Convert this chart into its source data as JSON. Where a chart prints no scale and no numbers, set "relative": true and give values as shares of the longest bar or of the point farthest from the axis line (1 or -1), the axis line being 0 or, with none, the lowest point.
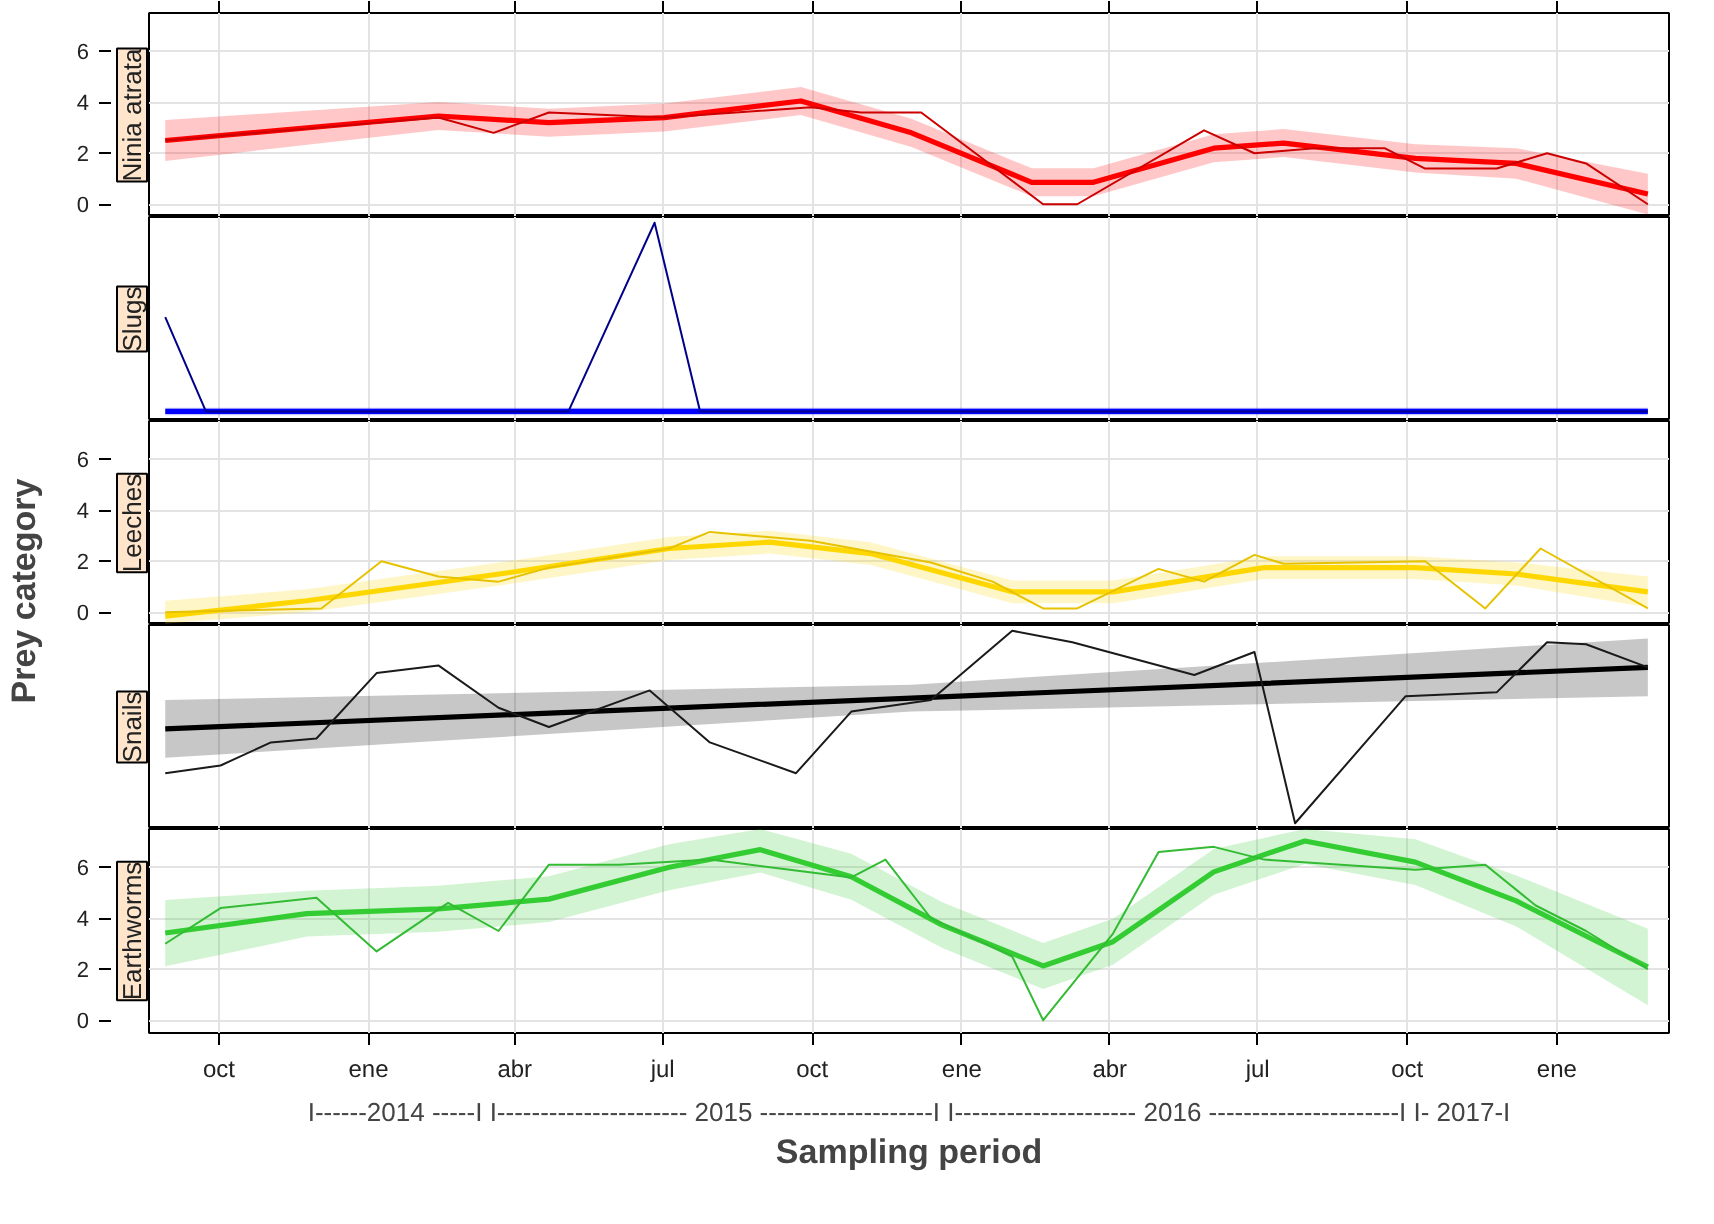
{
  "chart_data": [
    {
      "type": "line",
      "title": "Ninia atrata",
      "xlim": [
        "2014-08-19",
        "2017-03-11"
      ],
      "xticks": [
        {
          "value": "2014-10-01",
          "label": null
        },
        {
          "value": "2015-01-01",
          "label": null
        },
        {
          "value": "2015-04-01",
          "label": null
        },
        {
          "value": "2015-07-01",
          "label": null
        },
        {
          "value": "2015-10-01",
          "label": null
        },
        {
          "value": "2016-01-01",
          "label": null
        },
        {
          "value": "2016-04-01",
          "label": null
        },
        {
          "value": "2016-07-01",
          "label": null
        },
        {
          "value": "2016-10-01",
          "label": null
        },
        {
          "value": "2017-01-01",
          "label": null
        }
      ],
      "ylim": [
        -0.5,
        7.5
      ],
      "yticks": [
        0,
        2,
        4,
        6
      ],
      "grid": true,
      "tick_labels": "y",
      "series": [
        {
          "color": "#cc0000",
          "x": [
            "2014-08-29",
            "2015-02-13",
            "2015-03-19",
            "2015-04-22",
            "2015-07-02",
            "2015-09-30",
            "2015-10-31",
            "2015-12-07",
            "2016-02-20",
            "2016-03-12",
            "2016-05-29",
            "2016-06-29",
            "2016-08-05",
            "2016-09-17",
            "2016-10-12",
            "2016-11-25",
            "2016-12-26",
            "2017-01-19",
            "2017-02-26"
          ],
          "values": [
            2.5,
            3.4,
            2.8,
            3.6,
            3.4,
            3.8,
            3.6,
            3.6,
            0,
            0,
            2.9,
            2.0,
            2.2,
            2.2,
            1.4,
            1.4,
            2.0,
            1.6,
            0
          ]
        },
        {
          "color": "#ff0000",
          "x": [
            "2014-08-29",
            "2015-02-13",
            "2015-04-22",
            "2015-07-02",
            "2015-09-24",
            "2015-12-01",
            "2016-02-13",
            "2016-03-22",
            "2016-06-04",
            "2016-07-17",
            "2016-10-06",
            "2016-12-07",
            "2017-02-26"
          ],
          "values": [
            2.5,
            3.46,
            3.2,
            3.4,
            4.05,
            2.8,
            0.86,
            0.86,
            2.2,
            2.4,
            1.8,
            1.6,
            0.4
          ],
          "lower": [
            1.7,
            2.91,
            2.65,
            2.85,
            3.5,
            2.25,
            0.31,
            0.31,
            1.65,
            1.85,
            1.25,
            1.0,
            -0.4
          ],
          "upper": [
            3.3,
            4.01,
            3.75,
            3.95,
            4.6,
            3.35,
            1.41,
            1.41,
            2.75,
            2.95,
            2.35,
            2.2,
            1.2
          ]
        }
      ]
    },
    {
      "type": "line",
      "title": "Slugs",
      "relative": true,
      "xlim": [
        "2014-08-19",
        "2017-03-11"
      ],
      "xticks": [
        {
          "value": "2014-10-01",
          "label": null
        },
        {
          "value": "2015-01-01",
          "label": null
        },
        {
          "value": "2015-04-01",
          "label": null
        },
        {
          "value": "2015-07-01",
          "label": null
        },
        {
          "value": "2015-10-01",
          "label": null
        },
        {
          "value": "2016-01-01",
          "label": null
        },
        {
          "value": "2016-04-01",
          "label": null
        },
        {
          "value": "2016-07-01",
          "label": null
        },
        {
          "value": "2016-10-01",
          "label": null
        },
        {
          "value": "2017-01-01",
          "label": null
        }
      ],
      "grid": "x",
      "tick_labels": false,
      "series": [
        {
          "color": "#00008b",
          "x": [
            "2014-08-29",
            "2014-09-23",
            "2015-05-04",
            "2015-06-26",
            "2015-07-24",
            "2017-02-26"
          ],
          "values": [
            0.5,
            0,
            0,
            1,
            0,
            0
          ]
        },
        {
          "color": "#0000ff",
          "x": [
            "2014-08-29",
            "2017-02-26"
          ],
          "values": [
            0,
            0
          ],
          "lower": [
            -0.02,
            -0.02
          ],
          "upper": [
            0.02,
            0.02
          ]
        }
      ]
    },
    {
      "type": "line",
      "title": "Leeches",
      "ylabel": "Prey category",
      "xlim": [
        "2014-08-19",
        "2017-03-11"
      ],
      "xticks": [
        {
          "value": "2014-10-01",
          "label": null
        },
        {
          "value": "2015-01-01",
          "label": null
        },
        {
          "value": "2015-04-01",
          "label": null
        },
        {
          "value": "2015-07-01",
          "label": null
        },
        {
          "value": "2015-10-01",
          "label": null
        },
        {
          "value": "2016-01-01",
          "label": null
        },
        {
          "value": "2016-04-01",
          "label": null
        },
        {
          "value": "2016-07-01",
          "label": null
        },
        {
          "value": "2016-10-01",
          "label": null
        },
        {
          "value": "2017-01-01",
          "label": null
        }
      ],
      "ylim": [
        -0.5,
        7.5
      ],
      "yticks": [
        0,
        2,
        4,
        6
      ],
      "grid": true,
      "tick_labels": "y",
      "series": [
        {
          "color": "#e6c200",
          "x": [
            "2014-08-29",
            "2014-12-03",
            "2015-01-09",
            "2015-02-13",
            "2015-03-22",
            "2015-04-22",
            "2015-07-05",
            "2015-07-30",
            "2015-09-30",
            "2015-12-13",
            "2016-01-20",
            "2016-02-20",
            "2016-03-12",
            "2016-05-01",
            "2016-05-29",
            "2016-06-29",
            "2016-07-17",
            "2016-10-12",
            "2016-11-18",
            "2016-12-22",
            "2017-02-26"
          ],
          "values": [
            0,
            0.15,
            2.0,
            1.4,
            1.2,
            1.75,
            2.5,
            3.15,
            2.8,
            1.95,
            1.2,
            0.15,
            0.15,
            1.7,
            1.2,
            2.25,
            1.9,
            2.0,
            0.15,
            2.5,
            0.15
          ]
        },
        {
          "color": "#ffd700",
          "x": [
            "2014-08-29",
            "2014-11-24",
            "2015-03-28",
            "2015-07-05",
            "2015-09-05",
            "2015-11-06",
            "2016-02-01",
            "2016-04-03",
            "2016-07-05",
            "2016-10-06",
            "2016-12-07",
            "2017-02-26"
          ],
          "values": [
            -0.15,
            0.45,
            1.55,
            2.5,
            2.75,
            2.3,
            0.8,
            0.8,
            1.75,
            1.75,
            1.5,
            0.8
          ],
          "lower": [
            -0.45,
            0.0,
            1.1,
            2.05,
            2.3,
            1.85,
            0.35,
            0.35,
            1.3,
            1.3,
            1.05,
            0.2
          ],
          "upper": [
            0.45,
            0.9,
            2.0,
            2.95,
            3.2,
            2.75,
            1.25,
            1.25,
            2.2,
            2.2,
            1.95,
            1.4
          ]
        }
      ]
    },
    {
      "type": "line",
      "title": "Snails",
      "relative": true,
      "xlim": [
        "2014-08-19",
        "2017-03-11"
      ],
      "xticks": [
        {
          "value": "2014-10-01",
          "label": null
        },
        {
          "value": "2015-01-01",
          "label": null
        },
        {
          "value": "2015-04-01",
          "label": null
        },
        {
          "value": "2015-07-01",
          "label": null
        },
        {
          "value": "2015-10-01",
          "label": null
        },
        {
          "value": "2016-01-01",
          "label": null
        },
        {
          "value": "2016-04-01",
          "label": null
        },
        {
          "value": "2016-07-01",
          "label": null
        },
        {
          "value": "2016-10-01",
          "label": null
        },
        {
          "value": "2017-01-01",
          "label": null
        }
      ],
      "grid": "x",
      "tick_labels": false,
      "series": [
        {
          "color": "#1a1a1a",
          "x": [
            "2014-08-29",
            "2014-10-02",
            "2014-11-02",
            "2014-11-30",
            "2015-01-06",
            "2015-02-13",
            "2015-03-22",
            "2015-04-22",
            "2015-06-23",
            "2015-07-30",
            "2015-09-21",
            "2015-10-25",
            "2015-12-13",
            "2016-02-01",
            "2016-03-09",
            "2016-05-23",
            "2016-06-29",
            "2016-07-24",
            "2016-09-30",
            "2016-11-25",
            "2016-12-26",
            "2017-01-19",
            "2017-02-26"
          ],
          "values": [
            0.26,
            0.3,
            0.42,
            0.44,
            0.78,
            0.82,
            0.6,
            0.5,
            0.69,
            0.42,
            0.26,
            0.58,
            0.64,
            1.0,
            0.94,
            0.77,
            0.89,
            0,
            0.66,
            0.68,
            0.94,
            0.93,
            0.81
          ]
        },
        {
          "color": "#000000",
          "x": [
            "2014-08-29",
            "2015-12-01",
            "2017-02-26"
          ],
          "values": [
            0.49,
            0.65,
            0.81
          ],
          "lower": [
            0.34,
            0.58,
            0.66
          ],
          "upper": [
            0.64,
            0.72,
            0.96
          ]
        }
      ]
    },
    {
      "type": "line",
      "title": "Earthworms",
      "xlabel": "Sampling period",
      "annotations": [
        "I------2014 -----I I---------------------- 2015 --------------------I I--------------------- 2016 ----------------------I I- 2017-I"
      ],
      "xlim": [
        "2014-08-19",
        "2017-03-11"
      ],
      "xticks": [
        {
          "value": "2014-10-01",
          "label": "oct"
        },
        {
          "value": "2015-01-01",
          "label": "ene"
        },
        {
          "value": "2015-04-01",
          "label": "abr"
        },
        {
          "value": "2015-07-01",
          "label": "jul"
        },
        {
          "value": "2015-10-01",
          "label": "oct"
        },
        {
          "value": "2016-01-01",
          "label": "ene"
        },
        {
          "value": "2016-04-01",
          "label": "abr"
        },
        {
          "value": "2016-07-01",
          "label": "jul"
        },
        {
          "value": "2016-10-01",
          "label": "oct"
        },
        {
          "value": "2017-01-01",
          "label": "ene"
        }
      ],
      "ylim": [
        -0.5,
        7.5
      ],
      "yticks": [
        0,
        2,
        4,
        6
      ],
      "grid": true,
      "series": [
        {
          "color": "#33bb33",
          "x": [
            "2014-08-29",
            "2014-10-02",
            "2014-11-30",
            "2015-01-06",
            "2015-02-19",
            "2015-03-22",
            "2015-04-22",
            "2015-06-04",
            "2015-07-30",
            "2015-10-25",
            "2015-11-15",
            "2015-12-13",
            "2016-02-01",
            "2016-02-20",
            "2016-04-03",
            "2016-05-01",
            "2016-06-04",
            "2016-07-05",
            "2016-10-06",
            "2016-11-18",
            "2016-12-19",
            "2017-01-19",
            "2017-02-26"
          ],
          "values": [
            3.0,
            4.4,
            4.8,
            2.7,
            4.6,
            3.5,
            6.1,
            6.1,
            6.3,
            5.6,
            6.3,
            4.0,
            2.5,
            0,
            3.4,
            6.6,
            6.8,
            6.3,
            5.9,
            6.1,
            4.5,
            3.5,
            2.0
          ]
        },
        {
          "color": "#33cc33",
          "x": [
            "2014-08-29",
            "2014-11-24",
            "2015-02-13",
            "2015-04-22",
            "2015-07-05",
            "2015-08-30",
            "2015-10-25",
            "2015-12-20",
            "2016-02-20",
            "2016-04-03",
            "2016-06-04",
            "2016-07-30",
            "2016-10-06",
            "2016-12-07",
            "2017-02-26"
          ],
          "values": [
            3.42,
            4.18,
            4.37,
            4.75,
            6.0,
            6.69,
            5.63,
            3.73,
            2.13,
            3.08,
            5.82,
            7.03,
            6.2,
            4.68,
            2.09
          ],
          "lower": [
            2.12,
            3.28,
            3.47,
            3.85,
            5.1,
            5.79,
            4.73,
            2.83,
            1.23,
            2.18,
            4.92,
            6.13,
            5.3,
            3.68,
            0.59
          ],
          "upper": [
            4.72,
            5.08,
            5.27,
            5.65,
            6.9,
            7.5,
            6.53,
            4.63,
            3.03,
            3.98,
            6.72,
            7.5,
            7.1,
            5.68,
            3.59
          ]
        }
      ]
    }
  ]
}
